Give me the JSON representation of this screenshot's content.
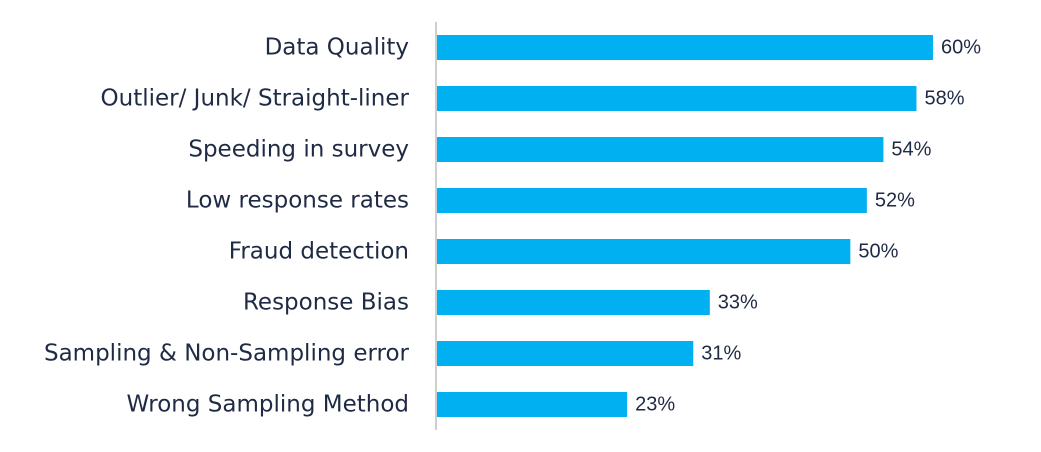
{
  "chart_data": {
    "type": "bar",
    "orientation": "horizontal",
    "title": "",
    "xlabel": "",
    "ylabel": "",
    "categories": [
      "Data Quality",
      "Outlier/ Junk/ Straight-liner",
      "Speeding in survey",
      "Low response rates",
      "Fraud detection",
      "Response Bias",
      "Sampling & Non-Sampling error",
      "Wrong Sampling Method"
    ],
    "values": [
      60,
      58,
      54,
      52,
      50,
      33,
      31,
      23
    ],
    "value_labels": [
      "60%",
      "58%",
      "54%",
      "52%",
      "50%",
      "33%",
      "31%",
      "23%"
    ],
    "unit": "%",
    "xlim": [
      0,
      60
    ],
    "grid": false,
    "legend": "none",
    "colors": {
      "bar": "#00b0f0",
      "axis": "#bfbfbf",
      "text": "#1f2a44"
    }
  }
}
